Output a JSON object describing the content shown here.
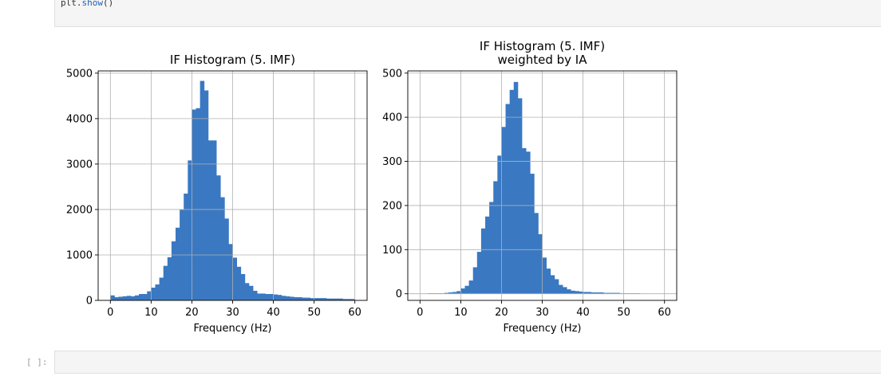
{
  "code_cell": {
    "line_prefix": "plt.",
    "line_fn": "show",
    "line_suffix": "()"
  },
  "empty_cell": {
    "prompt": "[ ]:"
  },
  "colors": {
    "bar": "#3a78c2",
    "grid": "#b0b0b0"
  },
  "chart_data": [
    {
      "type": "bar",
      "title": "IF Histogram (5. IMF)",
      "title_line2": "",
      "xlabel": "Frequency (Hz)",
      "ylabel": "",
      "xlim": [
        -3,
        63
      ],
      "ylim": [
        0,
        5050
      ],
      "xticks": [
        0,
        10,
        20,
        30,
        40,
        50,
        60
      ],
      "yticks": [
        0,
        1000,
        2000,
        3000,
        4000,
        5000
      ],
      "grid": true,
      "bin_edges": [
        0,
        1,
        2,
        3,
        4,
        5,
        6,
        7,
        8,
        9,
        10,
        11,
        12,
        13,
        14,
        15,
        16,
        17,
        18,
        19,
        20,
        21,
        22,
        23,
        24,
        25,
        26,
        27,
        28,
        29,
        30,
        31,
        32,
        33,
        34,
        35,
        36,
        37,
        38,
        39,
        40,
        41,
        42,
        43,
        44,
        45,
        46,
        47,
        48,
        49,
        50,
        51,
        52,
        53,
        54,
        55,
        56,
        57,
        58,
        59,
        60
      ],
      "values": [
        110,
        70,
        80,
        90,
        100,
        90,
        110,
        140,
        140,
        200,
        280,
        350,
        500,
        760,
        950,
        1300,
        1600,
        2000,
        2350,
        3080,
        4200,
        4230,
        4830,
        4620,
        3520,
        3520,
        2750,
        2270,
        1800,
        1240,
        940,
        740,
        580,
        380,
        320,
        210,
        150,
        150,
        140,
        140,
        130,
        120,
        100,
        90,
        80,
        70,
        70,
        60,
        60,
        50,
        50,
        50,
        50,
        40,
        40,
        40,
        40,
        30,
        30,
        30
      ]
    },
    {
      "type": "bar",
      "title": "IF Histogram (5. IMF)",
      "title_line2": "weighted by IA",
      "xlabel": "Frequency (Hz)",
      "ylabel": "",
      "xlim": [
        -3,
        63
      ],
      "ylim": [
        -15,
        505
      ],
      "xticks": [
        0,
        10,
        20,
        30,
        40,
        50,
        60
      ],
      "yticks": [
        0,
        100,
        200,
        300,
        400,
        500
      ],
      "grid": true,
      "bin_edges": [
        2,
        3,
        4,
        5,
        6,
        7,
        8,
        9,
        10,
        11,
        12,
        13,
        14,
        15,
        16,
        17,
        18,
        19,
        20,
        21,
        22,
        23,
        24,
        25,
        26,
        27,
        28,
        29,
        30,
        31,
        32,
        33,
        34,
        35,
        36,
        37,
        38,
        39,
        40,
        41,
        42,
        43,
        44,
        45,
        46,
        47,
        48,
        49,
        50,
        51,
        52,
        53,
        54
      ],
      "values": [
        1,
        1,
        1,
        1,
        2,
        3,
        4,
        6,
        12,
        18,
        30,
        60,
        95,
        148,
        175,
        208,
        255,
        313,
        378,
        430,
        462,
        480,
        443,
        330,
        322,
        272,
        183,
        135,
        82,
        57,
        42,
        33,
        20,
        15,
        10,
        7,
        6,
        5,
        4,
        4,
        3,
        3,
        3,
        2,
        2,
        2,
        2,
        1,
        1,
        1,
        1,
        1
      ]
    }
  ]
}
